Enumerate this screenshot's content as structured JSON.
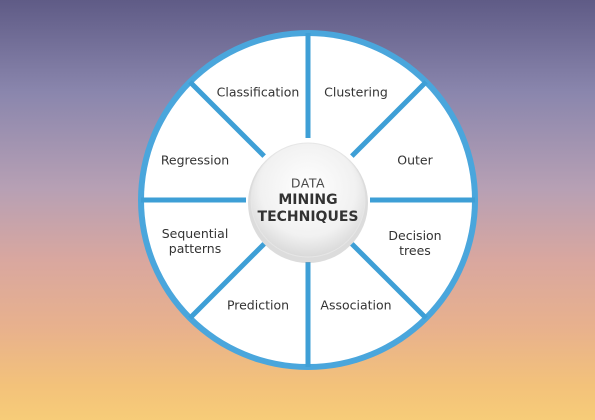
{
  "hub": {
    "line1": "DATA",
    "line2": "MINING",
    "line3": "TECHNIQUES"
  },
  "segments": [
    {
      "label": "Classification"
    },
    {
      "label": "Clustering"
    },
    {
      "label": "Outer"
    },
    {
      "label": "Decision\ntrees"
    },
    {
      "label": "Association"
    },
    {
      "label": "Prediction"
    },
    {
      "label": "Sequential\npatterns"
    },
    {
      "label": "Regression"
    }
  ],
  "colors": {
    "ring": "#4aa6dc",
    "divider": "#3e9fd6",
    "segment_fill": "#ffffff",
    "text": "#333333"
  }
}
